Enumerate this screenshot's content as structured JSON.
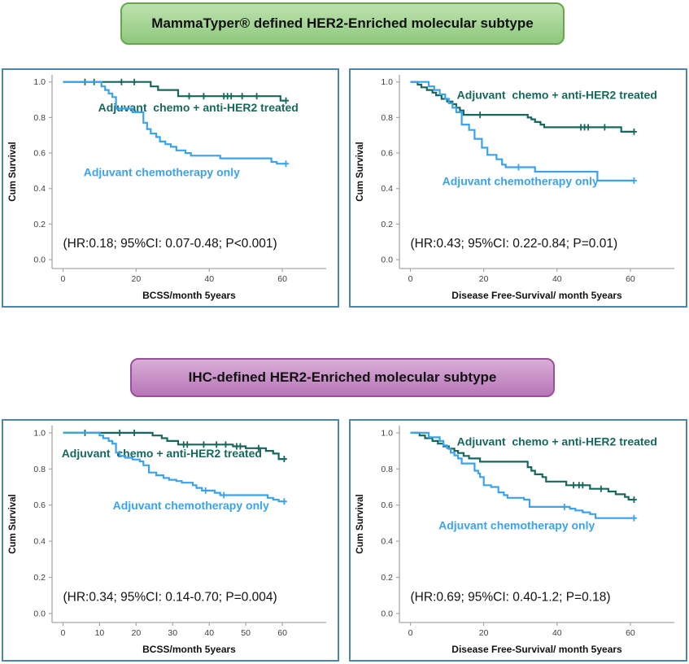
{
  "banners": {
    "top": {
      "label": "MammaTyper® defined HER2-Enriched molecular subtype",
      "fill_top": "#bee2ae",
      "fill_bottom": "#8ec87d",
      "border": "#67a64e"
    },
    "bottom": {
      "label": "IHC-defined HER2-Enriched molecular subtype",
      "fill_top": "#d9aed7",
      "fill_bottom": "#b875b8",
      "border": "#9a4f9c"
    }
  },
  "colors": {
    "treated_green": "#17685c",
    "chemo_blue": "#3ba2ec",
    "panel_border": "#4d86a8",
    "axis_spine": "#a6a6a6",
    "tick_text": "#3f3f3f",
    "annotation_text": "#111111"
  },
  "chart_data": [
    {
      "type": "line",
      "subtype": "kaplan-meier-step",
      "group": "MammaTyper-defined HER2-Enriched",
      "xlabel": "BCSS/month 5years",
      "ylabel": "Cum Survival",
      "xticks": [
        0,
        20,
        40,
        60
      ],
      "yticks": [
        0.0,
        0.2,
        0.4,
        0.6,
        0.8,
        1.0
      ],
      "xlim": [
        -3,
        72
      ],
      "ylim": [
        -0.05,
        1.04
      ],
      "annotation": {
        "text": "(HR:0.18; 95%CI: 0.07-0.48; P<0.001)",
        "x": 0,
        "y": 0.07
      },
      "series": [
        {
          "name": "Adjuvant  chemo + anti-HER2 treated",
          "color": "#17685c",
          "label": {
            "x": 37,
            "y": 0.835
          },
          "points": [
            [
              0,
              1.0
            ],
            [
              24,
              0.975
            ],
            [
              26,
              0.955
            ],
            [
              31.5,
              0.92
            ],
            [
              59.5,
              0.895
            ],
            [
              61,
              0.895
            ]
          ],
          "censors": [
            [
              6,
              1.0
            ],
            [
              8.5,
              1.0
            ],
            [
              16,
              1.0
            ],
            [
              19.5,
              1.0
            ],
            [
              34.5,
              0.92
            ],
            [
              38.5,
              0.92
            ],
            [
              44,
              0.92
            ],
            [
              45,
              0.92
            ],
            [
              46,
              0.92
            ],
            [
              49,
              0.92
            ],
            [
              53,
              0.92
            ],
            [
              61,
              0.895
            ]
          ]
        },
        {
          "name": "Adjuvant chemotherapy only",
          "color": "#3ba2ec",
          "label": {
            "x": 27,
            "y": 0.47
          },
          "points": [
            [
              0,
              1.0
            ],
            [
              10.5,
              0.975
            ],
            [
              11.5,
              0.955
            ],
            [
              12.5,
              0.935
            ],
            [
              13.5,
              0.915
            ],
            [
              14.5,
              0.85
            ],
            [
              19,
              0.83
            ],
            [
              22,
              0.77
            ],
            [
              23,
              0.735
            ],
            [
              24,
              0.71
            ],
            [
              25.5,
              0.69
            ],
            [
              26.5,
              0.665
            ],
            [
              28,
              0.65
            ],
            [
              29.5,
              0.635
            ],
            [
              31,
              0.615
            ],
            [
              33.5,
              0.6
            ],
            [
              35,
              0.585
            ],
            [
              43,
              0.57
            ],
            [
              57,
              0.55
            ],
            [
              58.5,
              0.54
            ],
            [
              61,
              0.54
            ]
          ],
          "censors": [
            [
              61,
              0.54
            ]
          ]
        }
      ]
    },
    {
      "type": "line",
      "subtype": "kaplan-meier-step",
      "group": "MammaTyper-defined HER2-Enriched",
      "xlabel": "Disease Free-Survival/ month 5years",
      "ylabel": "Cum Survival",
      "xticks": [
        0,
        20,
        40,
        60
      ],
      "yticks": [
        0.0,
        0.2,
        0.4,
        0.6,
        0.8,
        1.0
      ],
      "xlim": [
        -3,
        72
      ],
      "ylim": [
        -0.05,
        1.04
      ],
      "annotation": {
        "text": "(HR:0.43; 95%CI: 0.22-0.84; P=0.01)",
        "x": 0,
        "y": 0.07
      },
      "series": [
        {
          "name": "Adjuvant  chemo + anti-HER2 treated",
          "color": "#17685c",
          "label": {
            "x": 40,
            "y": 0.905
          },
          "points": [
            [
              0,
              1.0
            ],
            [
              2,
              0.985
            ],
            [
              3,
              0.97
            ],
            [
              4.5,
              0.955
            ],
            [
              6,
              0.94
            ],
            [
              7,
              0.925
            ],
            [
              8.5,
              0.905
            ],
            [
              10,
              0.89
            ],
            [
              11.5,
              0.875
            ],
            [
              12.5,
              0.855
            ],
            [
              13.5,
              0.84
            ],
            [
              14.5,
              0.815
            ],
            [
              32,
              0.8
            ],
            [
              33,
              0.79
            ],
            [
              34,
              0.775
            ],
            [
              35.5,
              0.76
            ],
            [
              36.5,
              0.745
            ],
            [
              57.5,
              0.72
            ],
            [
              61,
              0.72
            ]
          ],
          "censors": [
            [
              19,
              0.815
            ],
            [
              46.5,
              0.745
            ],
            [
              47.5,
              0.745
            ],
            [
              48.5,
              0.745
            ],
            [
              53,
              0.745
            ],
            [
              61,
              0.72
            ]
          ]
        },
        {
          "name": "Adjuvant chemotherapy only",
          "color": "#3ba2ec",
          "label": {
            "x": 30,
            "y": 0.42
          },
          "points": [
            [
              0,
              1.0
            ],
            [
              5,
              0.975
            ],
            [
              6.5,
              0.955
            ],
            [
              8,
              0.93
            ],
            [
              9.5,
              0.905
            ],
            [
              10.5,
              0.88
            ],
            [
              11.5,
              0.855
            ],
            [
              12.5,
              0.83
            ],
            [
              14,
              0.76
            ],
            [
              16,
              0.73
            ],
            [
              17.5,
              0.68
            ],
            [
              19.5,
              0.63
            ],
            [
              21,
              0.59
            ],
            [
              23.5,
              0.565
            ],
            [
              25,
              0.535
            ],
            [
              26,
              0.52
            ],
            [
              34,
              0.495
            ],
            [
              51,
              0.445
            ],
            [
              61,
              0.445
            ]
          ],
          "censors": [
            [
              29.5,
              0.52
            ],
            [
              61,
              0.445
            ]
          ]
        }
      ]
    },
    {
      "type": "line",
      "subtype": "kaplan-meier-step",
      "group": "IHC-defined HER2-Enriched",
      "xlabel": "BCSS/month 5years",
      "ylabel": "Cum Survival",
      "xticks": [
        0,
        10,
        20,
        30,
        40,
        50,
        60
      ],
      "yticks": [
        0.0,
        0.2,
        0.4,
        0.6,
        0.8,
        1.0
      ],
      "xlim": [
        -3,
        72
      ],
      "ylim": [
        -0.05,
        1.04
      ],
      "annotation": {
        "text": "(HR:0.34; 95%CI: 0.14-0.70; P=0.004)",
        "x": 0,
        "y": 0.07
      },
      "series": [
        {
          "name": "Adjuvant  chemo + anti-HER2 treated",
          "color": "#17685c",
          "label": {
            "x": 27,
            "y": 0.865
          },
          "points": [
            [
              0,
              1.0
            ],
            [
              24.5,
              0.985
            ],
            [
              27,
              0.97
            ],
            [
              28.5,
              0.955
            ],
            [
              31.5,
              0.935
            ],
            [
              46.5,
              0.925
            ],
            [
              50,
              0.915
            ],
            [
              55.5,
              0.9
            ],
            [
              57.5,
              0.885
            ],
            [
              59,
              0.855
            ],
            [
              61,
              0.855
            ]
          ],
          "censors": [
            [
              6,
              1.0
            ],
            [
              15.5,
              1.0
            ],
            [
              19.5,
              1.0
            ],
            [
              33,
              0.935
            ],
            [
              34,
              0.935
            ],
            [
              38.5,
              0.935
            ],
            [
              42,
              0.935
            ],
            [
              44.5,
              0.935
            ],
            [
              47.5,
              0.925
            ],
            [
              48.5,
              0.925
            ],
            [
              53.5,
              0.915
            ],
            [
              60.5,
              0.855
            ]
          ]
        },
        {
          "name": "Adjuvant chemotherapy only",
          "color": "#3ba2ec",
          "label": {
            "x": 35,
            "y": 0.575
          },
          "points": [
            [
              0,
              1.0
            ],
            [
              10,
              0.985
            ],
            [
              11,
              0.97
            ],
            [
              12.5,
              0.955
            ],
            [
              13.5,
              0.94
            ],
            [
              14.5,
              0.89
            ],
            [
              15.5,
              0.872
            ],
            [
              17,
              0.862
            ],
            [
              19,
              0.852
            ],
            [
              21,
              0.842
            ],
            [
              22,
              0.82
            ],
            [
              23.5,
              0.78
            ],
            [
              25.5,
              0.765
            ],
            [
              27.5,
              0.75
            ],
            [
              29,
              0.74
            ],
            [
              31,
              0.733
            ],
            [
              32.5,
              0.724
            ],
            [
              35.5,
              0.71
            ],
            [
              36.5,
              0.695
            ],
            [
              38,
              0.68
            ],
            [
              41.5,
              0.668
            ],
            [
              43,
              0.655
            ],
            [
              56,
              0.64
            ],
            [
              57.5,
              0.63
            ],
            [
              59,
              0.62
            ],
            [
              61,
              0.62
            ]
          ],
          "censors": [
            [
              39,
              0.68
            ],
            [
              44,
              0.655
            ],
            [
              60.5,
              0.62
            ]
          ]
        }
      ]
    },
    {
      "type": "line",
      "subtype": "kaplan-meier-step",
      "group": "IHC-defined HER2-Enriched",
      "xlabel": "Disease Free-Survival/ month 5years",
      "ylabel": "Cum Survival",
      "xticks": [
        0,
        20,
        40,
        60
      ],
      "yticks": [
        0.0,
        0.2,
        0.4,
        0.6,
        0.8,
        1.0
      ],
      "xlim": [
        -3,
        72
      ],
      "ylim": [
        -0.05,
        1.04
      ],
      "annotation": {
        "text": "(HR:0.69; 95%CI: 0.40-1.2; P=0.18)",
        "x": 0,
        "y": 0.07
      },
      "series": [
        {
          "name": "Adjuvant  chemo + anti-HER2 treated",
          "color": "#17685c",
          "label": {
            "x": 40,
            "y": 0.93
          },
          "points": [
            [
              0,
              1.0
            ],
            [
              2.5,
              0.985
            ],
            [
              4,
              0.97
            ],
            [
              6,
              0.955
            ],
            [
              7.5,
              0.94
            ],
            [
              9,
              0.925
            ],
            [
              10.5,
              0.912
            ],
            [
              12,
              0.9
            ],
            [
              13,
              0.888
            ],
            [
              14.5,
              0.872
            ],
            [
              16,
              0.858
            ],
            [
              19,
              0.84
            ],
            [
              32,
              0.81
            ],
            [
              33,
              0.79
            ],
            [
              34,
              0.77
            ],
            [
              36,
              0.755
            ],
            [
              37,
              0.73
            ],
            [
              42.5,
              0.71
            ],
            [
              49,
              0.69
            ],
            [
              54,
              0.675
            ],
            [
              56,
              0.66
            ],
            [
              58.5,
              0.645
            ],
            [
              59.5,
              0.63
            ],
            [
              61,
              0.63
            ]
          ],
          "censors": [
            [
              44.5,
              0.71
            ],
            [
              46,
              0.71
            ],
            [
              47,
              0.71
            ],
            [
              52,
              0.69
            ],
            [
              61,
              0.63
            ]
          ]
        },
        {
          "name": "Adjuvant chemotherapy only",
          "color": "#3ba2ec",
          "label": {
            "x": 29,
            "y": 0.465
          },
          "points": [
            [
              0,
              1.0
            ],
            [
              5,
              0.975
            ],
            [
              8,
              0.955
            ],
            [
              9,
              0.93
            ],
            [
              10,
              0.915
            ],
            [
              11,
              0.89
            ],
            [
              12,
              0.875
            ],
            [
              13,
              0.858
            ],
            [
              14,
              0.83
            ],
            [
              17.5,
              0.79
            ],
            [
              18.5,
              0.775
            ],
            [
              19,
              0.755
            ],
            [
              20,
              0.71
            ],
            [
              22,
              0.7
            ],
            [
              24,
              0.67
            ],
            [
              25.5,
              0.655
            ],
            [
              26.5,
              0.64
            ],
            [
              31,
              0.63
            ],
            [
              32.5,
              0.59
            ],
            [
              43.5,
              0.58
            ],
            [
              45,
              0.57
            ],
            [
              47,
              0.56
            ],
            [
              49,
              0.55
            ],
            [
              50.5,
              0.528
            ],
            [
              61,
              0.528
            ]
          ],
          "censors": [
            [
              42,
              0.59
            ],
            [
              61,
              0.528
            ]
          ]
        }
      ]
    }
  ]
}
